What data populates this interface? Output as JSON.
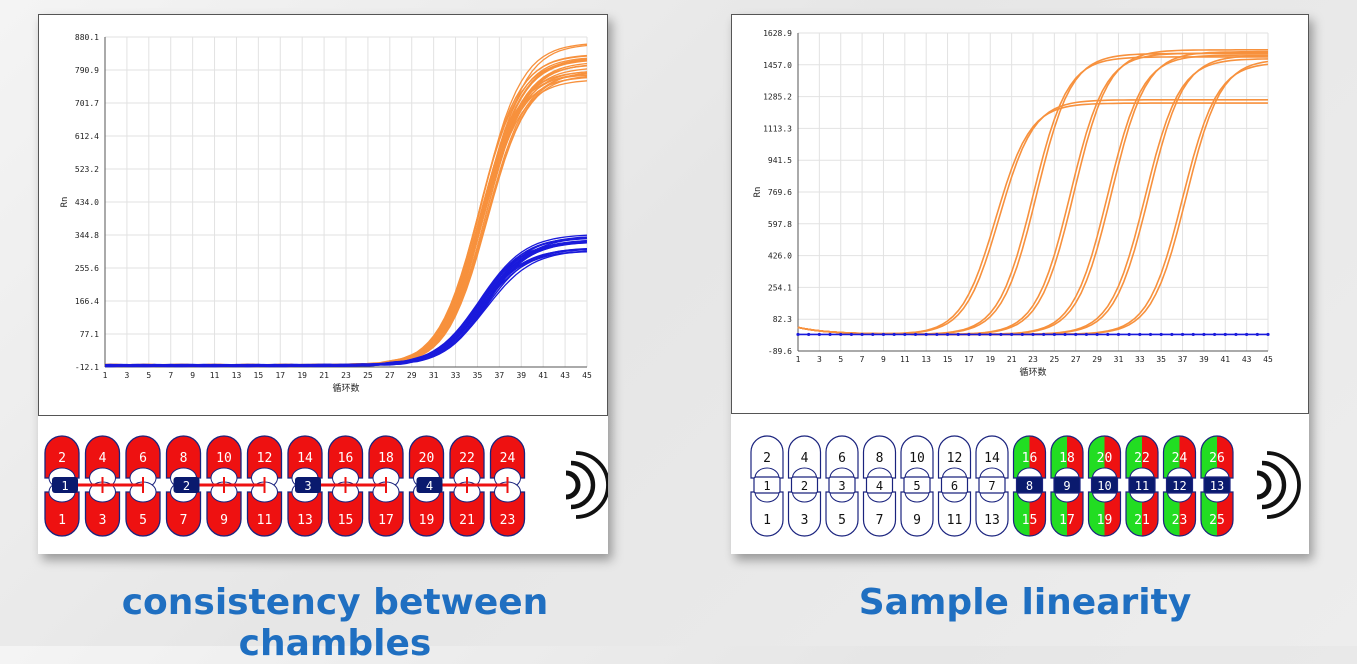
{
  "chart_data": [
    {
      "type": "line",
      "title": "",
      "xlabel": "循环数",
      "ylabel": "Rn",
      "xlim": [
        1,
        45
      ],
      "ylim": [
        -12.1,
        880.1
      ],
      "x_ticks": [
        "1",
        "3",
        "5",
        "7",
        "9",
        "11",
        "13",
        "15",
        "17",
        "19",
        "21",
        "23",
        "25",
        "27",
        "29",
        "31",
        "33",
        "35",
        "37",
        "39",
        "41",
        "43",
        "45"
      ],
      "y_ticks": [
        "880.1",
        "790.9",
        "701.7",
        "612.4",
        "523.2",
        "434.0",
        "344.8",
        "255.6",
        "166.4",
        "77.1",
        "-12.1"
      ],
      "grid": true,
      "series": [
        {
          "color": "#f7913d",
          "curves": 24,
          "baseline": -8,
          "midpoint": 35.5,
          "slope": 0.55,
          "plateau_range": [
            760,
            870
          ]
        },
        {
          "color": "#1a1adb",
          "curves": 24,
          "baseline": -8,
          "midpoint": 35.5,
          "slope": 0.5,
          "plateau_range": [
            300,
            360
          ]
        }
      ]
    },
    {
      "type": "line",
      "title": "",
      "xlabel": "循环数",
      "ylabel": "Rn",
      "xlim": [
        1,
        45
      ],
      "ylim": [
        -89.6,
        1628.9
      ],
      "x_ticks": [
        "1",
        "3",
        "5",
        "7",
        "9",
        "11",
        "13",
        "15",
        "17",
        "19",
        "21",
        "23",
        "25",
        "27",
        "29",
        "31",
        "33",
        "35",
        "37",
        "39",
        "41",
        "43",
        "45"
      ],
      "y_ticks": [
        "1628.9",
        "1457.0",
        "1285.2",
        "1113.3",
        "941.5",
        "769.6",
        "597.8",
        "426.0",
        "254.1",
        "82.3",
        "-89.6"
      ],
      "grid": true,
      "series": [
        {
          "color": "#f7913d",
          "midpoints": [
            19.5,
            23,
            26.5,
            30,
            33.5,
            37
          ],
          "plateaus": [
            1250,
            1500,
            1520,
            1510,
            1490,
            1470
          ]
        },
        {
          "color": "#1a1adb",
          "flat_value": 0
        }
      ]
    }
  ],
  "chambers_left": {
    "top_labels": [
      "2",
      "4",
      "6",
      "8",
      "10",
      "12",
      "14",
      "16",
      "18",
      "20",
      "22",
      "24"
    ],
    "bottom_labels": [
      "1",
      "3",
      "5",
      "7",
      "9",
      "11",
      "13",
      "15",
      "17",
      "19",
      "21",
      "23"
    ],
    "groups": [
      "1",
      "2",
      "3",
      "4"
    ],
    "fill": "#ee1111",
    "line_color": "#ee1111"
  },
  "chambers_right": {
    "top_labels": [
      "2",
      "4",
      "6",
      "8",
      "10",
      "12",
      "14",
      "16",
      "18",
      "20",
      "22",
      "24",
      "26"
    ],
    "bottom_labels": [
      "1",
      "3",
      "5",
      "7",
      "9",
      "11",
      "13",
      "15",
      "17",
      "19",
      "21",
      "23",
      "25"
    ],
    "mid_labels": [
      "1",
      "2",
      "3",
      "4",
      "5",
      "6",
      "7",
      "8",
      "9",
      "10",
      "11",
      "12",
      "13"
    ],
    "filled_from_index": 7,
    "colors": {
      "red": "#ee1111",
      "green": "#22dd22"
    }
  },
  "captions": {
    "left": "consistency between chambles",
    "right": "Sample linearity"
  }
}
